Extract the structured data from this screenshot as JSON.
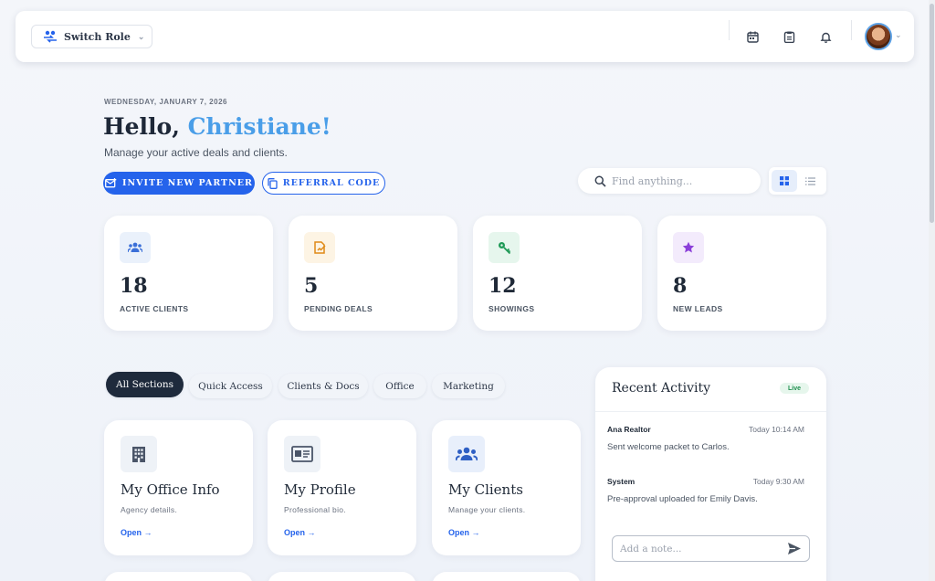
{
  "topbar": {
    "switch_role_label": "Switch Role",
    "icons": [
      "calendar-icon",
      "clipboard-icon",
      "bell-icon"
    ]
  },
  "header": {
    "date": "WEDNESDAY, JANUARY 7, 2026",
    "greeting": "Hello,",
    "name": "Christiane!",
    "subtitle": "Manage your active deals and clients."
  },
  "actions": {
    "invite_label": "INVITE NEW PARTNER",
    "referral_label": "REFERRAL CODE"
  },
  "search": {
    "placeholder": "Find anything..."
  },
  "stats": [
    {
      "value": "18",
      "label": "ACTIVE CLIENTS",
      "icon": "users-icon",
      "color": "#3b6fd8",
      "bg": "#eaf1fb"
    },
    {
      "value": "5",
      "label": "PENDING DEALS",
      "icon": "contract-icon",
      "color": "#e08a16",
      "bg": "#fdf4e4"
    },
    {
      "value": "12",
      "label": "SHOWINGS",
      "icon": "key-icon",
      "color": "#1f9a57",
      "bg": "#e6f6ed"
    },
    {
      "value": "8",
      "label": "NEW LEADS",
      "icon": "star-icon",
      "color": "#8b3fd9",
      "bg": "#f3ebfc"
    }
  ],
  "tabs": [
    "All Sections",
    "Quick Access",
    "Clients & Docs",
    "Office",
    "Marketing"
  ],
  "cards": [
    {
      "title": "My Office Info",
      "desc": "Agency details.",
      "open": "Open",
      "icon": "building-icon"
    },
    {
      "title": "My Profile",
      "desc": "Professional bio.",
      "open": "Open",
      "icon": "id-card-icon"
    },
    {
      "title": "My Clients",
      "desc": "Manage your clients.",
      "open": "Open",
      "icon": "users-icon"
    }
  ],
  "activity": {
    "title": "Recent Activity",
    "badge": "Live",
    "items": [
      {
        "who": "Ana Realtor",
        "time": "Today 10:14 AM",
        "text": "Sent welcome packet to Carlos."
      },
      {
        "who": "System",
        "time": "Today 9:30 AM",
        "text": "Pre-approval uploaded for Emily Davis."
      }
    ],
    "note_placeholder": "Add a note..."
  }
}
